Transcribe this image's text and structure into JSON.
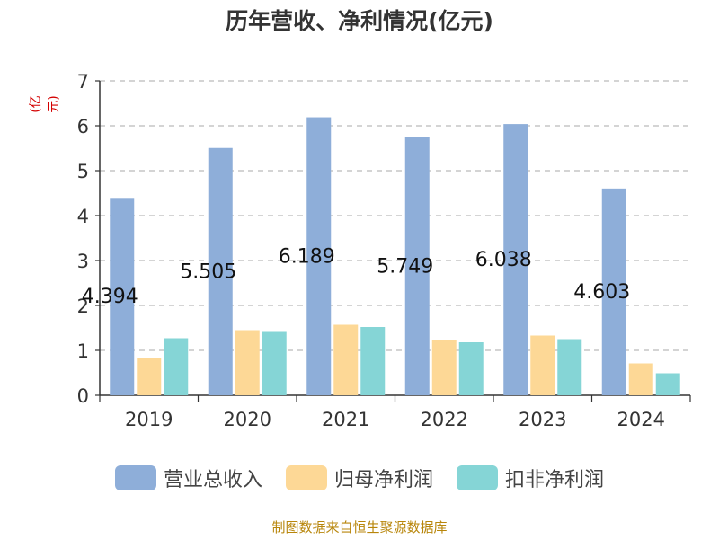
{
  "title": "历年营收、净利情况(亿元)",
  "unit_label": "(亿元)",
  "source": "制图数据来自恒生聚源数据库",
  "colors": {
    "revenue": "#8eaed9",
    "net_profit": "#fdd896",
    "deducted_net_profit": "#85d5d6",
    "grid": "#bbbbbb",
    "axis": "#333333"
  },
  "chart_data": {
    "type": "bar",
    "title": "历年营收、净利情况(亿元)",
    "ylabel": "(亿元)",
    "categories": [
      "2019",
      "2020",
      "2021",
      "2022",
      "2023",
      "2024"
    ],
    "ylim": [
      0,
      7
    ],
    "yticks": [
      0,
      1,
      2,
      3,
      4,
      5,
      6,
      7
    ],
    "grid": true,
    "legend_position": "bottom",
    "series": [
      {
        "name": "营业总收入",
        "color": "#8eaed9",
        "values": [
          4.394,
          5.505,
          6.189,
          5.749,
          6.038,
          4.603
        ],
        "labels": [
          "4.394",
          "5.505",
          "6.189",
          "5.749",
          "6.038",
          "4.603"
        ]
      },
      {
        "name": "归母净利润",
        "color": "#fdd896",
        "values": [
          0.84,
          1.45,
          1.57,
          1.23,
          1.33,
          0.71
        ]
      },
      {
        "name": "扣非净利润",
        "color": "#85d5d6",
        "values": [
          1.27,
          1.41,
          1.52,
          1.18,
          1.25,
          0.49
        ]
      }
    ]
  }
}
